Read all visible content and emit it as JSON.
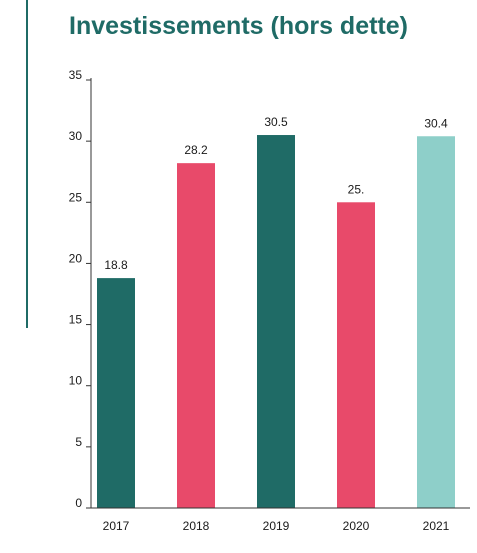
{
  "chart_data": {
    "type": "bar",
    "title": "Investissements (hors dette)",
    "categories": [
      "2017",
      "2018",
      "2019",
      "2020",
      "2021"
    ],
    "values": [
      18.8,
      28.2,
      30.5,
      25.0,
      30.4
    ],
    "value_labels": [
      "18.8",
      "28.2",
      "30.5",
      "25.",
      "30.4"
    ],
    "colors": [
      "#1f6b66",
      "#e84a6a",
      "#1f6b66",
      "#e84a6a",
      "#8ecfc9"
    ],
    "yticks": [
      "0",
      "5",
      "10",
      "15",
      "20",
      "25",
      "30",
      "35"
    ],
    "ylim": [
      0,
      35
    ],
    "xlabel": "",
    "ylabel": "",
    "grid": false
  }
}
